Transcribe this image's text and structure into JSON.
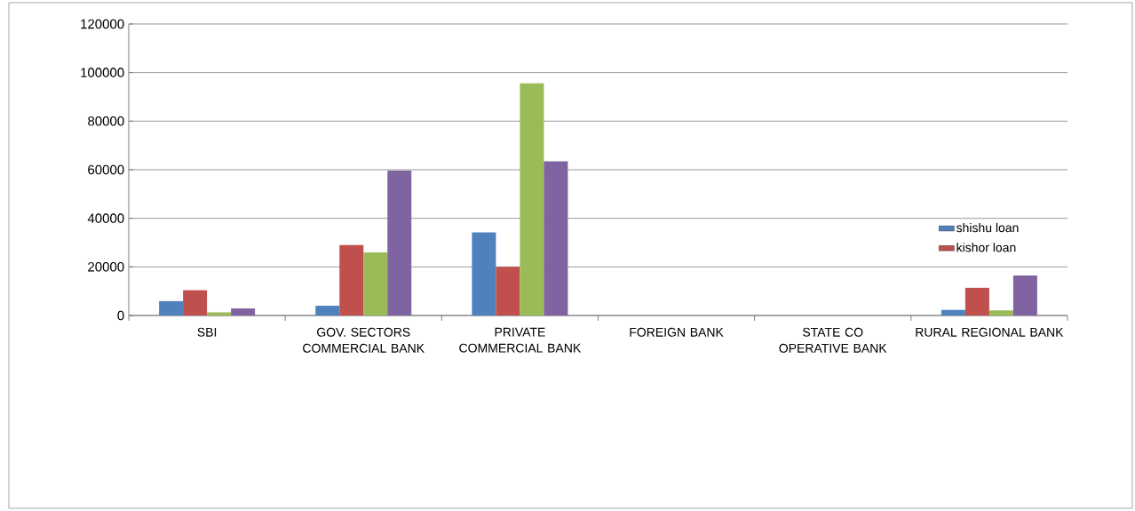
{
  "chart_data": {
    "type": "bar",
    "categories": [
      "SBI",
      "GOV. SECTORS COMMERCIAL BANK",
      "PRIVATE COMMERCIAL BANK",
      "FOREIGN BANK",
      "STATE CO OPERATIVE BANK",
      "RURAL REGIONAL BANK"
    ],
    "series": [
      {
        "name": "shishu loan",
        "color": "#4f81bd",
        "values": [
          5900,
          4000,
          34200,
          null,
          null,
          2300
        ]
      },
      {
        "name": "kishor loan",
        "color": "#c0504d",
        "values": [
          10400,
          29000,
          20000,
          null,
          null,
          11400
        ]
      },
      {
        "color": "#9bbb59",
        "values": [
          1300,
          26000,
          95600,
          null,
          null,
          2100
        ]
      },
      {
        "color": "#8064a2",
        "values": [
          2900,
          59600,
          63500,
          null,
          null,
          16500
        ]
      }
    ],
    "ylim": [
      0,
      120000
    ],
    "yticks": [
      0,
      20000,
      40000,
      60000,
      80000,
      100000,
      120000
    ],
    "grid": "y",
    "legend": "right"
  }
}
